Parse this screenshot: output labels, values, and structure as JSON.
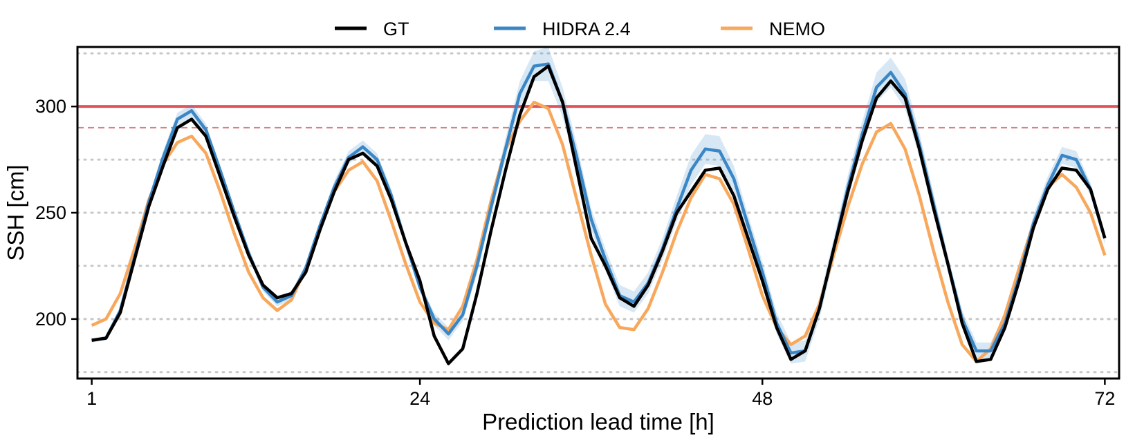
{
  "chart_data": {
    "type": "line",
    "title": "",
    "xlabel": "Prediction lead time [h]",
    "ylabel": "SSH [cm]",
    "xlim": [
      0,
      73
    ],
    "ylim": [
      172,
      328
    ],
    "xticks": [
      1,
      24,
      48,
      72
    ],
    "yticks": [
      200,
      250,
      300
    ],
    "grid": {
      "horizontal_dotted": [
        175,
        200,
        225,
        250,
        275,
        325
      ]
    },
    "legend": {
      "placement": "top-center-outside",
      "entries": [
        "GT",
        "HIDRA 2.4",
        "NEMO"
      ]
    },
    "threshold_lines": [
      {
        "value": 300,
        "style": "solid",
        "color": "#e0555c"
      },
      {
        "value": 290,
        "style": "dashed",
        "color": "#d98080"
      }
    ],
    "x": [
      1,
      2,
      3,
      4,
      5,
      6,
      7,
      8,
      9,
      10,
      11,
      12,
      13,
      14,
      15,
      16,
      17,
      18,
      19,
      20,
      21,
      22,
      23,
      24,
      25,
      26,
      27,
      28,
      29,
      30,
      31,
      32,
      33,
      34,
      35,
      36,
      37,
      38,
      39,
      40,
      41,
      42,
      43,
      44,
      45,
      46,
      47,
      48,
      49,
      50,
      51,
      52,
      53,
      54,
      55,
      56,
      57,
      58,
      59,
      60,
      61,
      62,
      63,
      64,
      65,
      66,
      67,
      68,
      69,
      70,
      71,
      72
    ],
    "series": [
      {
        "name": "GT",
        "color": "#000000",
        "values": [
          190,
          191,
          203,
          228,
          253,
          272,
          290,
          294,
          286,
          267,
          248,
          230,
          216,
          210,
          212,
          222,
          242,
          260,
          275,
          278,
          272,
          256,
          236,
          218,
          192,
          179,
          186,
          212,
          242,
          270,
          296,
          314,
          319,
          302,
          270,
          238,
          225,
          210,
          206,
          216,
          232,
          250,
          260,
          270,
          271,
          258,
          238,
          218,
          196,
          181,
          185,
          205,
          233,
          260,
          284,
          304,
          312,
          304,
          280,
          252,
          226,
          198,
          180,
          181,
          196,
          218,
          243,
          261,
          271,
          270,
          261,
          238
        ]
      },
      {
        "name": "HIDRA 2.4",
        "color": "#3b87c6",
        "values": [
          190,
          191,
          204,
          229,
          255,
          276,
          294,
          298,
          289,
          270,
          250,
          231,
          215,
          208,
          211,
          224,
          244,
          262,
          276,
          281,
          275,
          258,
          236,
          215,
          200,
          193,
          202,
          225,
          253,
          280,
          306,
          319,
          320,
          302,
          276,
          247,
          228,
          211,
          208,
          217,
          233,
          252,
          270,
          280,
          279,
          266,
          244,
          222,
          198,
          184,
          185,
          205,
          233,
          262,
          287,
          309,
          316,
          306,
          282,
          254,
          226,
          200,
          185,
          185,
          198,
          220,
          245,
          263,
          277,
          275,
          261,
          238
        ],
        "band_halfwidth": [
          1,
          1,
          1,
          2,
          2,
          3,
          3,
          3,
          3,
          2,
          2,
          2,
          2,
          2,
          2,
          2,
          2,
          3,
          3,
          3,
          3,
          3,
          2,
          2,
          3,
          3,
          3,
          4,
          4,
          5,
          6,
          7,
          8,
          7,
          6,
          5,
          5,
          5,
          5,
          5,
          5,
          6,
          7,
          7,
          7,
          6,
          5,
          5,
          5,
          5,
          5,
          5,
          5,
          6,
          6,
          7,
          7,
          7,
          6,
          5,
          4,
          4,
          4,
          4,
          4,
          4,
          4,
          4,
          4,
          4,
          3,
          3
        ]
      },
      {
        "name": "NEMO",
        "color": "#f8a85c",
        "values": [
          197,
          200,
          212,
          233,
          256,
          273,
          283,
          286,
          278,
          260,
          240,
          222,
          210,
          204,
          209,
          224,
          243,
          260,
          270,
          274,
          265,
          246,
          226,
          208,
          198,
          195,
          206,
          228,
          256,
          280,
          293,
          302,
          299,
          282,
          256,
          230,
          207,
          196,
          195,
          205,
          222,
          241,
          257,
          268,
          266,
          254,
          233,
          211,
          196,
          188,
          192,
          207,
          230,
          253,
          273,
          288,
          292,
          280,
          258,
          232,
          208,
          188,
          180,
          186,
          202,
          224,
          245,
          262,
          268,
          262,
          250,
          230
        ]
      }
    ]
  }
}
